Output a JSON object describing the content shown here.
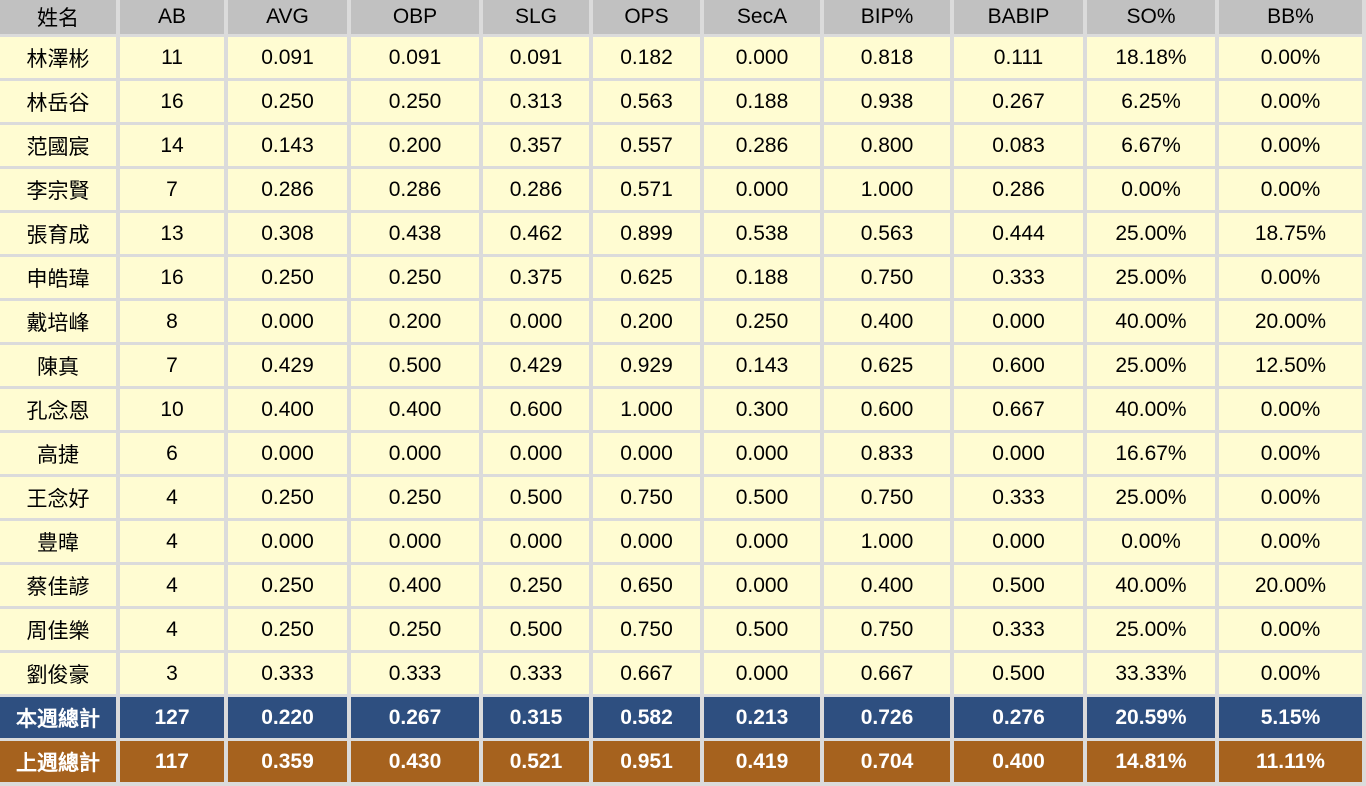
{
  "colors": {
    "header_bg": "#C1C1C1",
    "cell_bg": "#FFFCD2",
    "grid": "#DBDBDB",
    "text": "#000000",
    "this_week_bg": "#2E4F80",
    "last_week_bg": "#A6621E",
    "totals_text": "#FFFFFF"
  },
  "chart_data": {
    "type": "table",
    "columns": [
      "姓名",
      "AB",
      "AVG",
      "OBP",
      "SLG",
      "OPS",
      "SecA",
      "BIP%",
      "BABIP",
      "SO%",
      "BB%"
    ],
    "rows": [
      [
        "林澤彬",
        "11",
        "0.091",
        "0.091",
        "0.091",
        "0.182",
        "0.000",
        "0.818",
        "0.111",
        "18.18%",
        "0.00%"
      ],
      [
        "林岳谷",
        "16",
        "0.250",
        "0.250",
        "0.313",
        "0.563",
        "0.188",
        "0.938",
        "0.267",
        "6.25%",
        "0.00%"
      ],
      [
        "范國宸",
        "14",
        "0.143",
        "0.200",
        "0.357",
        "0.557",
        "0.286",
        "0.800",
        "0.083",
        "6.67%",
        "0.00%"
      ],
      [
        "李宗賢",
        "7",
        "0.286",
        "0.286",
        "0.286",
        "0.571",
        "0.000",
        "1.000",
        "0.286",
        "0.00%",
        "0.00%"
      ],
      [
        "張育成",
        "13",
        "0.308",
        "0.438",
        "0.462",
        "0.899",
        "0.538",
        "0.563",
        "0.444",
        "25.00%",
        "18.75%"
      ],
      [
        "申皓瑋",
        "16",
        "0.250",
        "0.250",
        "0.375",
        "0.625",
        "0.188",
        "0.750",
        "0.333",
        "25.00%",
        "0.00%"
      ],
      [
        "戴培峰",
        "8",
        "0.000",
        "0.200",
        "0.000",
        "0.200",
        "0.250",
        "0.400",
        "0.000",
        "40.00%",
        "20.00%"
      ],
      [
        "陳真",
        "7",
        "0.429",
        "0.500",
        "0.429",
        "0.929",
        "0.143",
        "0.625",
        "0.600",
        "25.00%",
        "12.50%"
      ],
      [
        "孔念恩",
        "10",
        "0.400",
        "0.400",
        "0.600",
        "1.000",
        "0.300",
        "0.600",
        "0.667",
        "40.00%",
        "0.00%"
      ],
      [
        "高捷",
        "6",
        "0.000",
        "0.000",
        "0.000",
        "0.000",
        "0.000",
        "0.833",
        "0.000",
        "16.67%",
        "0.00%"
      ],
      [
        "王念好",
        "4",
        "0.250",
        "0.250",
        "0.500",
        "0.750",
        "0.500",
        "0.750",
        "0.333",
        "25.00%",
        "0.00%"
      ],
      [
        "豊暐",
        "4",
        "0.000",
        "0.000",
        "0.000",
        "0.000",
        "0.000",
        "1.000",
        "0.000",
        "0.00%",
        "0.00%"
      ],
      [
        "蔡佳諺",
        "4",
        "0.250",
        "0.400",
        "0.250",
        "0.650",
        "0.000",
        "0.400",
        "0.500",
        "40.00%",
        "20.00%"
      ],
      [
        "周佳樂",
        "4",
        "0.250",
        "0.250",
        "0.500",
        "0.750",
        "0.500",
        "0.750",
        "0.333",
        "25.00%",
        "0.00%"
      ],
      [
        "劉俊豪",
        "3",
        "0.333",
        "0.333",
        "0.333",
        "0.667",
        "0.000",
        "0.667",
        "0.500",
        "33.33%",
        "0.00%"
      ]
    ],
    "totals": [
      [
        "本週總計",
        "127",
        "0.220",
        "0.267",
        "0.315",
        "0.582",
        "0.213",
        "0.726",
        "0.276",
        "20.59%",
        "5.15%"
      ],
      [
        "上週總計",
        "117",
        "0.359",
        "0.430",
        "0.521",
        "0.951",
        "0.419",
        "0.704",
        "0.400",
        "14.81%",
        "11.11%"
      ]
    ]
  }
}
